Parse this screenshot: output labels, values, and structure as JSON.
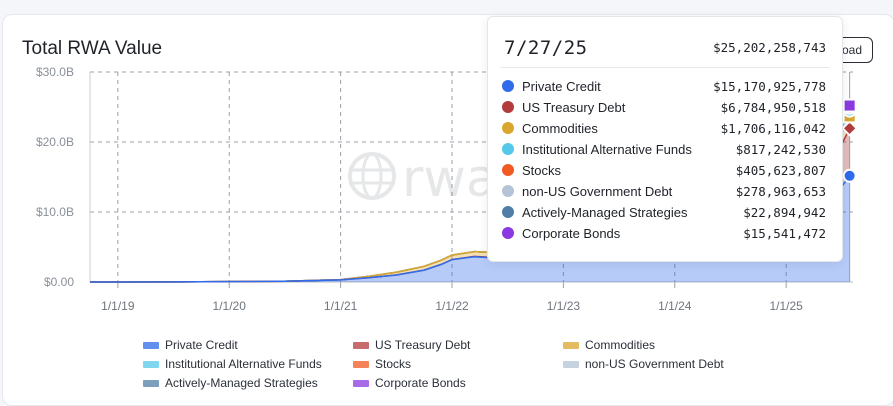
{
  "card": {
    "title": "Total RWA Value",
    "download_label": "oad"
  },
  "colors": {
    "Private Credit": "#2f6bea",
    "US Treasury Debt": "#b33b3b",
    "Commodities": "#d9a62e",
    "Institutional Alternative Funds": "#55c8ea",
    "Stocks": "#f15a22",
    "non-US Government Debt": "#b4c3d6",
    "Actively-Managed Strategies": "#4f7fa6",
    "Corporate Bonds": "#8a3ae0"
  },
  "tooltip": {
    "date": "7/27/25",
    "total": "$25,202,258,743",
    "rows": [
      {
        "name": "Private Credit",
        "value": "$15,170,925,778"
      },
      {
        "name": "US Treasury Debt",
        "value": "$6,784,950,518"
      },
      {
        "name": "Commodities",
        "value": "$1,706,116,042"
      },
      {
        "name": "Institutional Alternative Funds",
        "value": "$817,242,530"
      },
      {
        "name": "Stocks",
        "value": "$405,623,807"
      },
      {
        "name": "non-US Government Debt",
        "value": "$278,963,653"
      },
      {
        "name": "Actively-Managed Strategies",
        "value": "$22,894,942"
      },
      {
        "name": "Corporate Bonds",
        "value": "$15,541,472"
      }
    ]
  },
  "watermark": {
    "text": "rwa"
  },
  "chart_data": {
    "type": "area",
    "title": "Total RWA Value",
    "xlabel": "",
    "ylabel": "",
    "ylim": [
      0,
      30
    ],
    "y_unit": "$B",
    "y_ticks": [
      "$0.00",
      "$10.0B",
      "$20.0B",
      "$30.0B"
    ],
    "y_tick_values": [
      0,
      10,
      20,
      30
    ],
    "x_ticks": [
      "1/1/19",
      "1/1/20",
      "1/1/21",
      "1/1/22",
      "1/1/23",
      "1/1/24",
      "1/1/25"
    ],
    "x_tick_years": [
      2019,
      2020,
      2021,
      2022,
      2023,
      2024,
      2025
    ],
    "x_range": [
      2018.75,
      2025.6
    ],
    "grid": true,
    "legend_position": "bottom",
    "x": [
      2018.75,
      2019.5,
      2020.5,
      2021.0,
      2021.25,
      2021.5,
      2021.75,
      2021.9,
      2022.0,
      2022.2,
      2022.5,
      2022.7,
      2023.0,
      2023.5,
      2024.0,
      2024.5,
      2024.9,
      2025.2,
      2025.4,
      2025.57
    ],
    "series": [
      {
        "name": "Private Credit",
        "values": [
          0.0,
          0.02,
          0.1,
          0.3,
          0.6,
          1.0,
          1.7,
          2.5,
          3.2,
          3.6,
          3.3,
          3.0,
          3.3,
          4.5,
          5.5,
          6.5,
          8.0,
          9.5,
          11.5,
          15.17
        ]
      },
      {
        "name": "US Treasury Debt",
        "values": [
          0.0,
          0.0,
          0.0,
          0.0,
          0.0,
          0.0,
          0.0,
          0.0,
          0.0,
          0.05,
          0.1,
          0.2,
          0.4,
          0.6,
          0.8,
          1.6,
          2.8,
          3.8,
          5.0,
          6.78
        ]
      },
      {
        "name": "Commodities",
        "values": [
          0.0,
          0.0,
          0.0,
          0.05,
          0.2,
          0.4,
          0.55,
          0.6,
          0.65,
          0.7,
          0.7,
          0.7,
          0.7,
          0.75,
          0.8,
          0.85,
          0.9,
          1.1,
          1.4,
          1.71
        ]
      },
      {
        "name": "Institutional Alternative Funds",
        "values": [
          0.0,
          0.0,
          0.0,
          0.0,
          0.0,
          0.0,
          0.0,
          0.0,
          0.0,
          0.0,
          0.0,
          0.0,
          0.0,
          0.0,
          0.0,
          0.05,
          0.15,
          0.35,
          0.6,
          0.82
        ]
      },
      {
        "name": "Stocks",
        "values": [
          0.0,
          0.0,
          0.0,
          0.0,
          0.0,
          0.0,
          0.0,
          0.0,
          0.0,
          0.0,
          0.0,
          0.0,
          0.0,
          0.0,
          0.02,
          0.05,
          0.1,
          0.2,
          0.3,
          0.41
        ]
      },
      {
        "name": "non-US Government Debt",
        "values": [
          0.0,
          0.0,
          0.0,
          0.0,
          0.0,
          0.0,
          0.0,
          0.0,
          0.0,
          0.0,
          0.0,
          0.0,
          0.05,
          0.1,
          0.15,
          0.2,
          0.22,
          0.25,
          0.26,
          0.28
        ]
      },
      {
        "name": "Actively-Managed Strategies",
        "values": [
          0.0,
          0.0,
          0.0,
          0.0,
          0.0,
          0.0,
          0.0,
          0.0,
          0.0,
          0.0,
          0.0,
          0.0,
          0.0,
          0.0,
          0.0,
          0.0,
          0.01,
          0.02,
          0.02,
          0.02
        ]
      },
      {
        "name": "Corporate Bonds",
        "values": [
          0.0,
          0.0,
          0.0,
          0.0,
          0.0,
          0.0,
          0.0,
          0.0,
          0.0,
          0.0,
          0.0,
          0.0,
          0.0,
          0.0,
          0.0,
          0.0,
          0.01,
          0.01,
          0.02,
          0.02
        ]
      }
    ]
  }
}
